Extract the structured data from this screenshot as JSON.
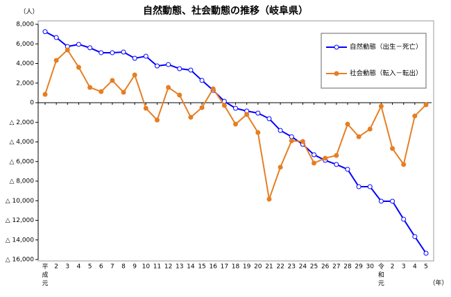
{
  "chart_data": {
    "type": "line",
    "title": "自然動態、社会動態の推移（岐阜県）",
    "y_label": "（人）",
    "x_label": "（年）",
    "categories": [
      "平成元",
      "2",
      "3",
      "4",
      "5",
      "6",
      "7",
      "8",
      "9",
      "10",
      "11",
      "12",
      "13",
      "14",
      "15",
      "16",
      "17",
      "18",
      "19",
      "20",
      "21",
      "22",
      "23",
      "24",
      "25",
      "26",
      "27",
      "28",
      "29",
      "30",
      "令和元",
      "2",
      "3",
      "4",
      "5"
    ],
    "series": [
      {
        "name": "自然動態（出生－死亡）",
        "color": "#0000ff",
        "marker": "open",
        "values": [
          7250,
          6650,
          5730,
          5950,
          5600,
          5100,
          5100,
          5170,
          4530,
          4740,
          3750,
          3890,
          3470,
          3330,
          2270,
          1270,
          140,
          -570,
          -850,
          -1060,
          -1630,
          -2830,
          -3470,
          -4250,
          -5310,
          -5880,
          -6300,
          -6800,
          -8570,
          -8570,
          -10050,
          -10050,
          -11890,
          -13660,
          -15360
        ]
      },
      {
        "name": "社会動態（転入－転出）",
        "color": "#e67e22",
        "marker": "filled",
        "values": [
          850,
          4320,
          5380,
          3610,
          1560,
          1130,
          2270,
          1060,
          2830,
          -570,
          -1770,
          1560,
          780,
          -1490,
          -500,
          1420,
          -280,
          -2190,
          -1200,
          -3040,
          -9840,
          -6580,
          -3890,
          -3960,
          -6160,
          -5660,
          -5380,
          -2190,
          -3470,
          -2690,
          -350,
          -4670,
          -6300,
          -1350,
          -210
        ]
      }
    ],
    "ylim": [
      -16000,
      8000
    ],
    "yticks": [
      {
        "value": -16000,
        "label": "△ 16,000"
      },
      {
        "value": -14000,
        "label": "△ 14,000"
      },
      {
        "value": -12000,
        "label": "△ 12,000"
      },
      {
        "value": -10000,
        "label": "△ 10,000"
      },
      {
        "value": -8000,
        "label": "△ 8,000"
      },
      {
        "value": -6000,
        "label": "△ 6,000"
      },
      {
        "value": -4000,
        "label": "△ 4,000"
      },
      {
        "value": -2000,
        "label": "△ 2,000"
      },
      0,
      {
        "value": 2000,
        "label": "2,000"
      },
      {
        "value": 4000,
        "label": "4,000"
      },
      {
        "value": 6000,
        "label": "6,000"
      },
      {
        "value": 8000,
        "label": "8,000"
      }
    ],
    "legend": "top-right"
  }
}
